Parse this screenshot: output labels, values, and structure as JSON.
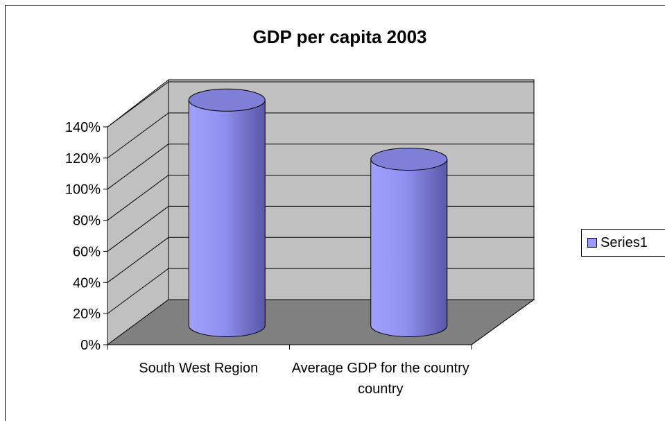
{
  "chart_data": {
    "type": "bar",
    "bar_style": "3d-cylinder",
    "title": "GDP per capita 2003",
    "xlabel": "",
    "ylabel": "",
    "categories": [
      "South West Region",
      "Average GDP for the country"
    ],
    "category_lines": [
      [
        "South West Region"
      ],
      [
        "Average GDP for the country",
        "country"
      ]
    ],
    "series": [
      {
        "name": "Series1",
        "values": [
          1.45,
          1.07
        ]
      }
    ],
    "ylim": [
      0,
      1.4
    ],
    "ytick_values": [
      0,
      0.2,
      0.4,
      0.6,
      0.8,
      1.0,
      1.2,
      1.4
    ],
    "ytick_labels": [
      "0%",
      "20%",
      "40%",
      "60%",
      "80%",
      "100%",
      "120%",
      "140%"
    ],
    "grid": true,
    "legend": "right",
    "colors": {
      "bar_fill": "#9999ff",
      "bar_dark": "#5c5cb0",
      "bar_top": "#7f7fd8",
      "wall": "#c0c0c0",
      "floor": "#808080",
      "gridline": "#000000"
    }
  }
}
